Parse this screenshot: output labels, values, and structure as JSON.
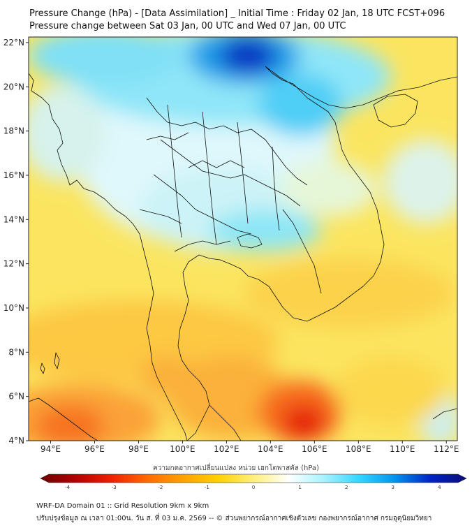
{
  "header": {
    "title_line1": "Pressure Change (hPa) - [Data Assimilation] _ Initial Time : Friday 02 Jan, 18 UTC FCST+096",
    "title_line2": "Pressure change between Sat 03 Jan, 00 UTC and Wed 07 Jan, 00 UTC"
  },
  "map": {
    "lon_ticks": [
      "94°E",
      "96°E",
      "98°E",
      "100°E",
      "102°E",
      "104°E",
      "106°E",
      "108°E",
      "110°E",
      "112°E"
    ],
    "lat_ticks": [
      "22°N",
      "20°N",
      "18°N",
      "16°N",
      "14°N",
      "12°N",
      "10°N",
      "8°N",
      "6°N",
      "4°N"
    ],
    "lon_values": [
      94,
      96,
      98,
      100,
      102,
      104,
      106,
      108,
      110,
      112
    ],
    "lat_values": [
      22,
      20,
      18,
      16,
      14,
      12,
      10,
      8,
      6,
      4
    ],
    "lon_range": [
      93,
      112.5
    ],
    "lat_range": [
      4,
      22.25
    ],
    "land_color": "#ffffff",
    "border_color": "#111111"
  },
  "colorbar": {
    "label": "ความกดอากาศเปลี่ยนแปลง หน่วย เฮกโตพาสคัล (hPa)",
    "ticks": [
      "-4",
      "-3",
      "-2",
      "-1",
      "0",
      "1",
      "2",
      "3",
      "4"
    ],
    "tick_values": [
      -4,
      -3,
      -2,
      -1,
      0,
      1,
      2,
      3,
      4
    ],
    "range": [
      -4.4,
      4.4
    ],
    "colors": [
      "#6b0000",
      "#b40000",
      "#f01e00",
      "#ff6a00",
      "#ffa000",
      "#ffd000",
      "#fff07a",
      "#ffffff",
      "#a6f2ff",
      "#2fd6ff",
      "#0091ee",
      "#0021c4",
      "#0c0c78"
    ]
  },
  "footer": {
    "line1": "WRF-DA Domain 01 :: Grid Resolution 9km x 9km",
    "line2": "ปรับปรุงข้อมูล ณ เวลา 01:00น. วัน ส. ที่ 03 ม.ค. 2569 -- © ส่วนพยากรณ์อากาศเชิงตัวเลข กองพยากรณ์อากาศ กรมอุตุนิยมวิทยา"
  }
}
